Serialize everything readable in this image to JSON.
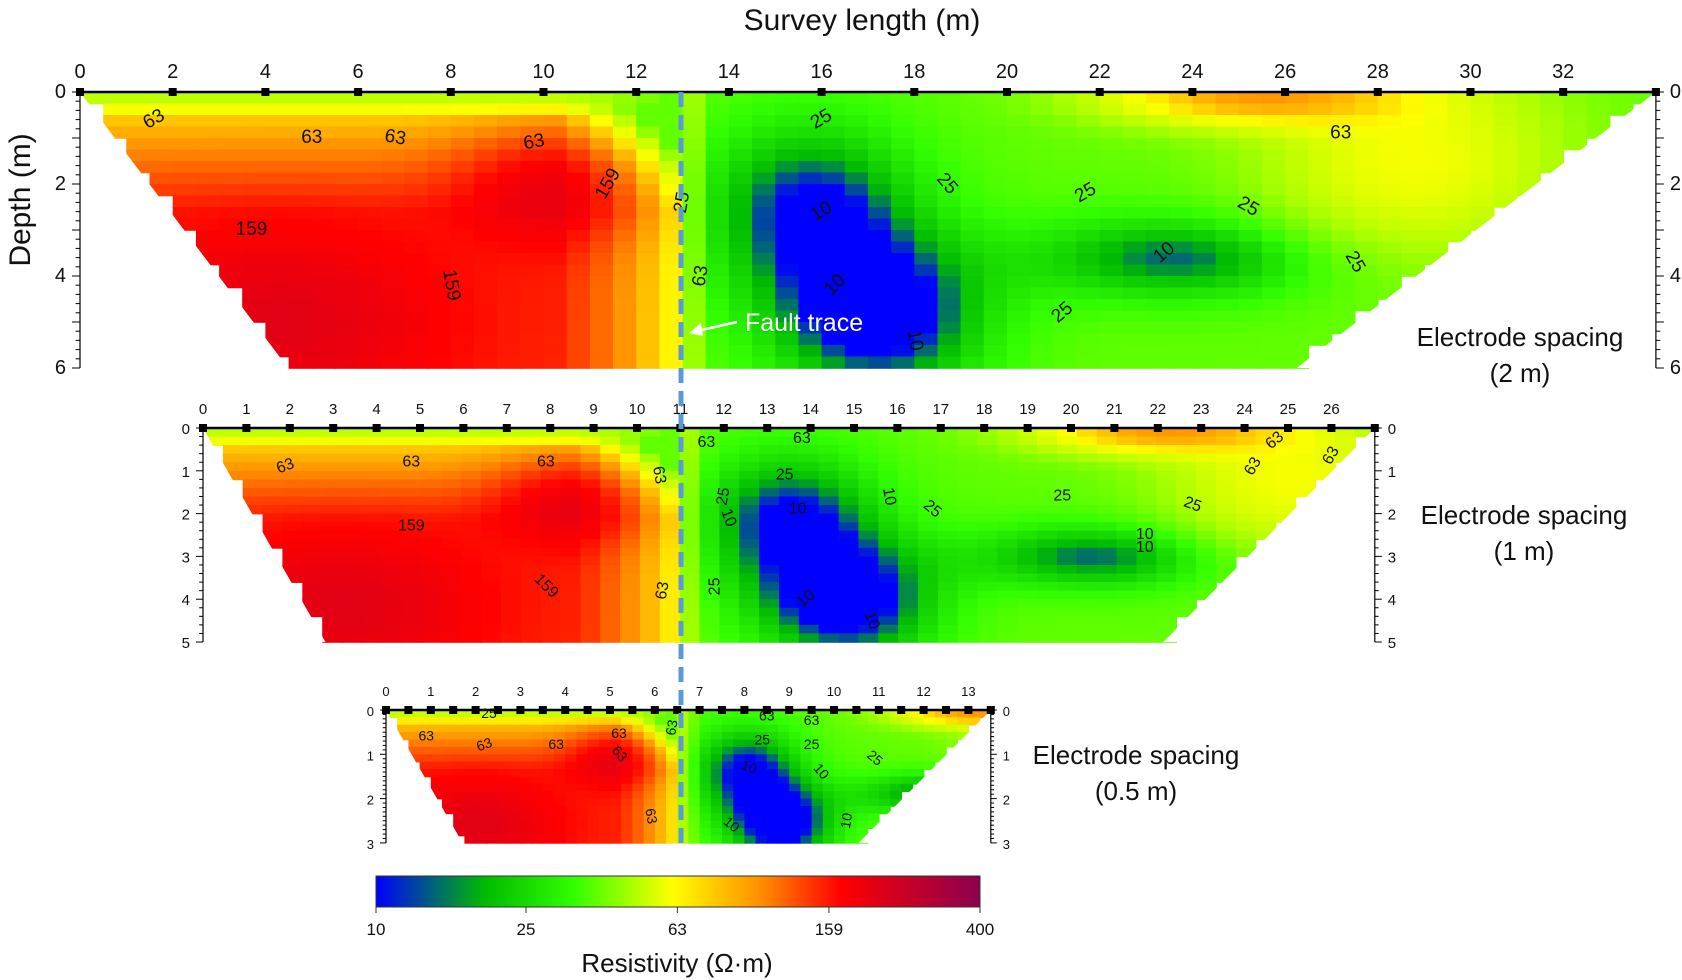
{
  "chart_data": {
    "type": "heatmap",
    "figure": {
      "top_axis_title": "Survey length (m)",
      "left_axis_title": "Depth (m)",
      "fault_label": "Fault trace",
      "fault_x_m": 13.2,
      "colorbar": {
        "title": "Resistivity (Ω·m)",
        "scale": "log",
        "ticks": [
          "10",
          "25",
          "63",
          "159",
          "400"
        ],
        "tick_values": [
          10,
          25,
          63,
          159,
          400
        ],
        "colors": [
          "#0000ff",
          "#00c800",
          "#32ff00",
          "#ffff00",
          "#ff8c00",
          "#ff0000",
          "#8b0050"
        ]
      }
    },
    "panels": [
      {
        "caption_line1": "Electrode spacing",
        "caption_line2": "(2 m)",
        "electrode_spacing_m": 2,
        "x_ticks": [
          "0",
          "2",
          "4",
          "6",
          "8",
          "10",
          "12",
          "14",
          "16",
          "18",
          "20",
          "22",
          "24",
          "26",
          "28",
          "30",
          "32"
        ],
        "x_range": [
          0,
          34
        ],
        "y_ticks": [
          "0",
          "2",
          "4",
          "6"
        ],
        "y_range": [
          0,
          6
        ],
        "contour_labels": [
          {
            "text": "63",
            "x": 1.6,
            "y": 0.6,
            "rot": -30
          },
          {
            "text": "63",
            "x": 5,
            "y": 1,
            "rot": 0
          },
          {
            "text": "63",
            "x": 6.8,
            "y": 1,
            "rot": 10
          },
          {
            "text": "63",
            "x": 9.8,
            "y": 1.1,
            "rot": -10
          },
          {
            "text": "159",
            "x": 3.7,
            "y": 3,
            "rot": 0
          },
          {
            "text": "159",
            "x": 11.4,
            "y": 2,
            "rot": -60
          },
          {
            "text": "159",
            "x": 8,
            "y": 4.2,
            "rot": 80
          },
          {
            "text": "25",
            "x": 13,
            "y": 2.4,
            "rot": -80
          },
          {
            "text": "63",
            "x": 13.4,
            "y": 4,
            "rot": -80
          },
          {
            "text": "25",
            "x": 16,
            "y": 0.6,
            "rot": -30
          },
          {
            "text": "10",
            "x": 16,
            "y": 2.6,
            "rot": -30
          },
          {
            "text": "25",
            "x": 18.7,
            "y": 2,
            "rot": 50
          },
          {
            "text": "25",
            "x": 21.7,
            "y": 2.2,
            "rot": -30
          },
          {
            "text": "25",
            "x": 25.2,
            "y": 2.5,
            "rot": 30
          },
          {
            "text": "10",
            "x": 23.4,
            "y": 3.5,
            "rot": -40
          },
          {
            "text": "25",
            "x": 27.5,
            "y": 3.7,
            "rot": 60
          },
          {
            "text": "10",
            "x": 16.3,
            "y": 4.2,
            "rot": -45
          },
          {
            "text": "10",
            "x": 18,
            "y": 5.4,
            "rot": 80
          },
          {
            "text": "25",
            "x": 21.2,
            "y": 4.8,
            "rot": -40
          },
          {
            "text": "63",
            "x": 27.2,
            "y": 0.9,
            "rot": 0
          }
        ]
      },
      {
        "caption_line1": "Electrode spacing",
        "caption_line2": "(1 m)",
        "electrode_spacing_m": 1,
        "x_ticks": [
          "0",
          "1",
          "2",
          "3",
          "4",
          "5",
          "6",
          "7",
          "8",
          "9",
          "10",
          "11",
          "12",
          "13",
          "14",
          "15",
          "16",
          "17",
          "18",
          "19",
          "20",
          "21",
          "22",
          "23",
          "24",
          "25",
          "26"
        ],
        "x_range": [
          0,
          27
        ],
        "y_ticks": [
          "0",
          "1",
          "2",
          "3",
          "4",
          "5"
        ],
        "y_range": [
          0,
          5
        ],
        "contour_labels": [
          {
            "text": "63",
            "x": 1.9,
            "y": 0.9,
            "rot": -20
          },
          {
            "text": "63",
            "x": 4.8,
            "y": 0.8,
            "rot": 0
          },
          {
            "text": "63",
            "x": 7.9,
            "y": 0.8,
            "rot": 0
          },
          {
            "text": "63",
            "x": 10.5,
            "y": 1.1,
            "rot": 80
          },
          {
            "text": "63",
            "x": 10.6,
            "y": 3.8,
            "rot": -80
          },
          {
            "text": "159",
            "x": 4.8,
            "y": 2.3,
            "rot": 0
          },
          {
            "text": "159",
            "x": 7.9,
            "y": 3.7,
            "rot": 45
          },
          {
            "text": "63",
            "x": 11.6,
            "y": 0.35,
            "rot": 0
          },
          {
            "text": "63",
            "x": 13.8,
            "y": 0.25,
            "rot": 0
          },
          {
            "text": "25",
            "x": 12,
            "y": 1.6,
            "rot": -80
          },
          {
            "text": "10",
            "x": 12.1,
            "y": 2.1,
            "rot": 70
          },
          {
            "text": "25",
            "x": 13.4,
            "y": 1.1,
            "rot": 0
          },
          {
            "text": "10",
            "x": 13.7,
            "y": 1.9,
            "rot": 0
          },
          {
            "text": "10",
            "x": 15.8,
            "y": 1.6,
            "rot": 80
          },
          {
            "text": "25",
            "x": 16.8,
            "y": 1.9,
            "rot": 40
          },
          {
            "text": "25",
            "x": 19.8,
            "y": 1.6,
            "rot": 0
          },
          {
            "text": "25",
            "x": 22.8,
            "y": 1.8,
            "rot": 20
          },
          {
            "text": "10",
            "x": 21.7,
            "y": 2.5,
            "rot": 0
          },
          {
            "text": "10",
            "x": 21.7,
            "y": 2.8,
            "rot": 0
          },
          {
            "text": "25",
            "x": 11.8,
            "y": 3.7,
            "rot": -90
          },
          {
            "text": "10",
            "x": 13.9,
            "y": 4,
            "rot": -40
          },
          {
            "text": "10",
            "x": 15.4,
            "y": 4.5,
            "rot": 70
          },
          {
            "text": "63",
            "x": 24.7,
            "y": 0.3,
            "rot": -40
          },
          {
            "text": "63",
            "x": 24.2,
            "y": 0.9,
            "rot": -60
          },
          {
            "text": "63",
            "x": 26,
            "y": 0.65,
            "rot": -60
          }
        ]
      },
      {
        "caption_line1": "Electrode spacing",
        "caption_line2": "(0.5 m)",
        "electrode_spacing_m": 0.5,
        "x_ticks": [
          "0",
          "1",
          "2",
          "3",
          "4",
          "5",
          "6",
          "7",
          "8",
          "9",
          "10",
          "11",
          "12",
          "13"
        ],
        "x_range": [
          0,
          13.5
        ],
        "y_ticks": [
          "0",
          "1",
          "2",
          "3"
        ],
        "y_range": [
          0,
          3
        ],
        "contour_labels": [
          {
            "text": "25",
            "x": 2.3,
            "y": 0.1,
            "rot": 0
          },
          {
            "text": "63",
            "x": 0.9,
            "y": 0.6,
            "rot": 0
          },
          {
            "text": "63",
            "x": 2.2,
            "y": 0.8,
            "rot": -20
          },
          {
            "text": "63",
            "x": 3.8,
            "y": 0.8,
            "rot": 0
          },
          {
            "text": "63",
            "x": 5.2,
            "y": 0.55,
            "rot": 0
          },
          {
            "text": "63",
            "x": 5.2,
            "y": 1,
            "rot": 50
          },
          {
            "text": "63",
            "x": 6.4,
            "y": 0.4,
            "rot": -80
          },
          {
            "text": "63",
            "x": 5.9,
            "y": 2.4,
            "rot": 80
          },
          {
            "text": "63",
            "x": 8.5,
            "y": 0.15,
            "rot": 0
          },
          {
            "text": "63",
            "x": 9.5,
            "y": 0.25,
            "rot": 0
          },
          {
            "text": "25",
            "x": 8.4,
            "y": 0.7,
            "rot": 0
          },
          {
            "text": "25",
            "x": 9.5,
            "y": 0.8,
            "rot": 0
          },
          {
            "text": "25",
            "x": 10.9,
            "y": 1.1,
            "rot": 40
          },
          {
            "text": "10",
            "x": 8.1,
            "y": 1.3,
            "rot": 20
          },
          {
            "text": "10",
            "x": 9.7,
            "y": 1.4,
            "rot": 50
          },
          {
            "text": "10",
            "x": 7.7,
            "y": 2.6,
            "rot": 40
          },
          {
            "text": "10",
            "x": 10.3,
            "y": 2.5,
            "rot": -80
          }
        ]
      }
    ]
  }
}
